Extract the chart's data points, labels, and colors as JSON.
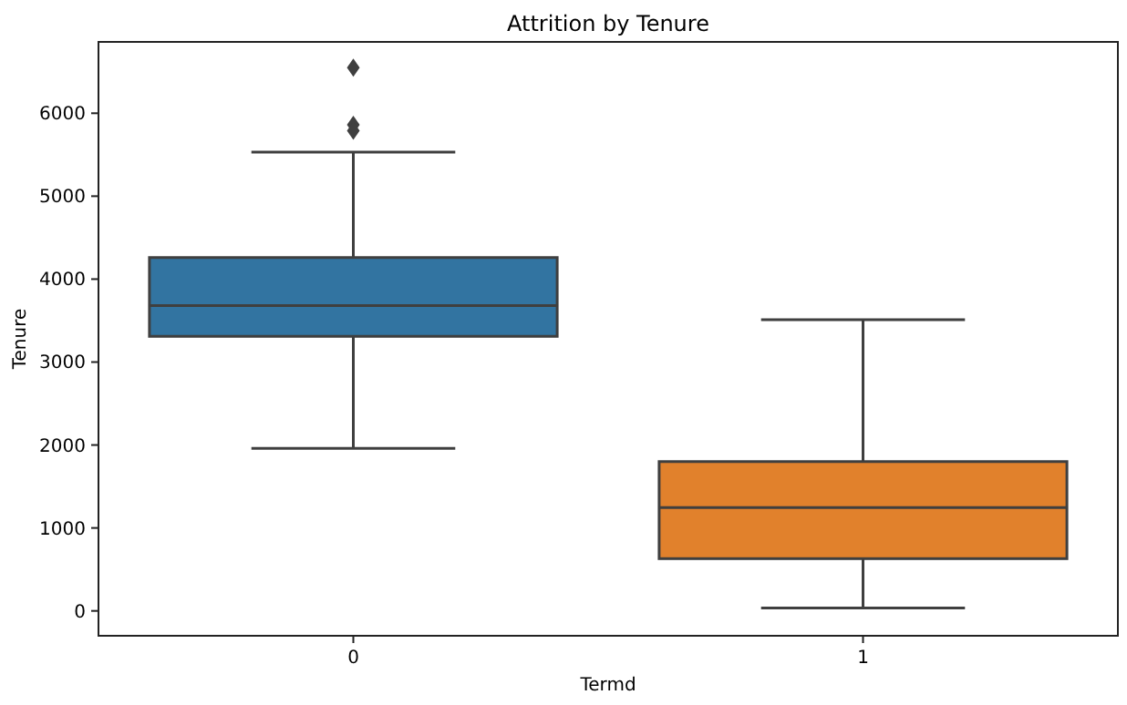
{
  "chart_data": {
    "type": "box",
    "title": "Attrition by Tenure",
    "xlabel": "Termd",
    "ylabel": "Tenure",
    "categories": [
      "0",
      "1"
    ],
    "colors": [
      "#3274a1",
      "#e1812c"
    ],
    "boxes": [
      {
        "low": 1960,
        "q1": 3310,
        "median": 3680,
        "q3": 4260,
        "high": 5530,
        "outliers": [
          6550,
          5860,
          5790
        ]
      },
      {
        "low": 35,
        "q1": 630,
        "median": 1245,
        "q3": 1800,
        "high": 3510
      }
    ],
    "ylim": [
      -300,
      6860
    ],
    "yticks": [
      0,
      1000,
      2000,
      3000,
      4000,
      5000,
      6000
    ],
    "grid": false
  }
}
